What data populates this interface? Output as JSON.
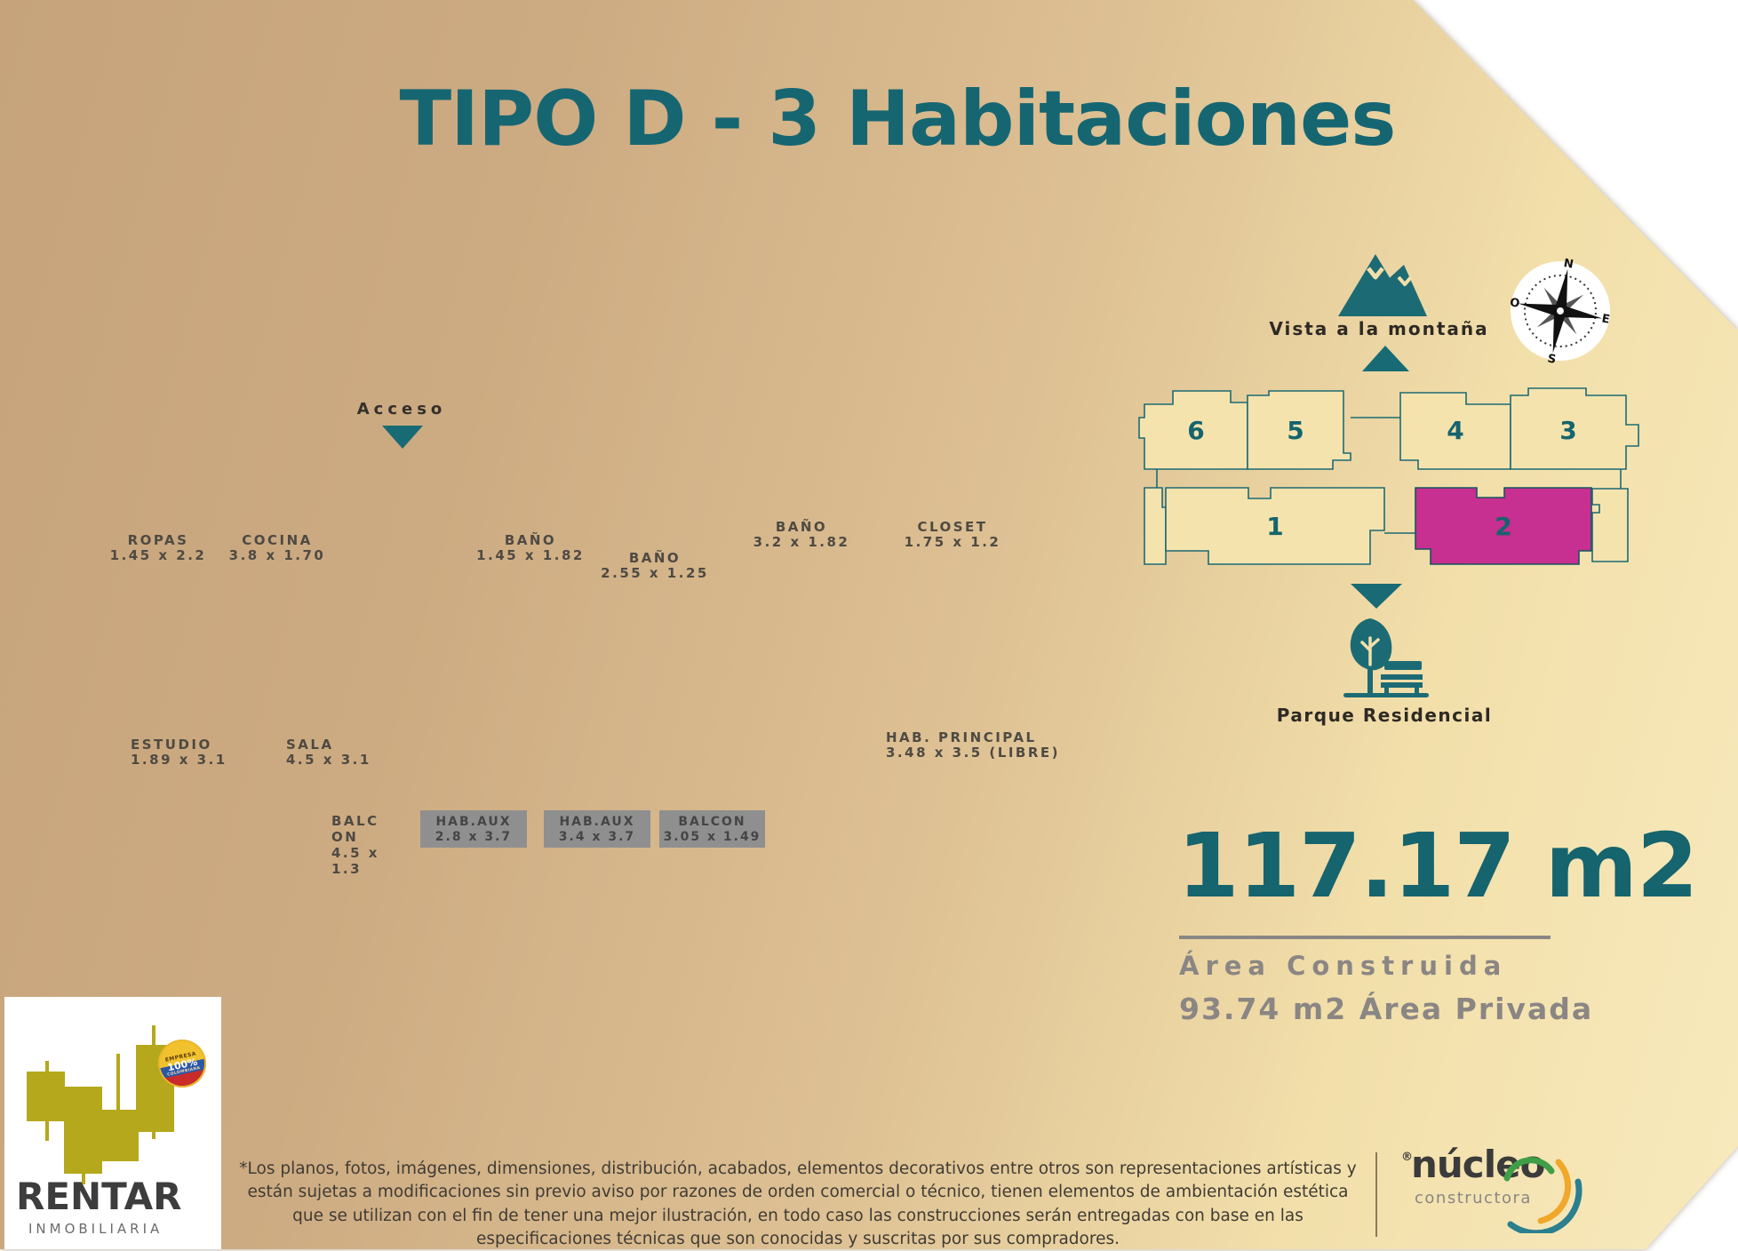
{
  "title": "TIPO D - 3 Habitaciones",
  "access": {
    "label": "Acceso"
  },
  "rooms": [
    {
      "name": "ROPAS",
      "dims": "1.45 x 2.2"
    },
    {
      "name": "COCINA",
      "dims": "3.8 x 1.70"
    },
    {
      "name": "BAÑO",
      "dims": "1.45 x 1.82"
    },
    {
      "name": "BAÑO",
      "dims": "2.55 x 1.25"
    },
    {
      "name": "BAÑO",
      "dims": "3.2 x 1.82"
    },
    {
      "name": "CLOSET",
      "dims": "1.75 x 1.2"
    },
    {
      "name": "ESTUDIO",
      "dims": "1.89 x 3.1"
    },
    {
      "name": "SALA",
      "dims": "4.5 x 3.1"
    },
    {
      "name": "HAB. PRINCIPAL",
      "dims": "3.48 x 3.5 (LIBRE)"
    },
    {
      "name": "BALCON",
      "dims": "4.5 x 1.3"
    }
  ],
  "aux_boxes": [
    {
      "name": "HAB.AUX",
      "dims": "2.8 x 3.7"
    },
    {
      "name": "HAB.AUX",
      "dims": "3.4 x 3.7"
    },
    {
      "name": "BALCON",
      "dims": "3.05 x 1.49"
    }
  ],
  "diagram": {
    "units": [
      "6",
      "5",
      "4",
      "3",
      "1",
      "2"
    ],
    "highlighted_unit": "2",
    "vista_label": "Vista a la montaña",
    "park_label": "Parque Residencial",
    "compass": {
      "n": "N",
      "e": "E",
      "s": "S",
      "o": "O"
    }
  },
  "area": {
    "total": "117.17 m2",
    "built_label": "Área Construida",
    "private_label": "93.74 m2 Área Privada"
  },
  "disclaimer": "*Los planos, fotos, imágenes, dimensiones, distribución, acabados, elementos decorativos entre otros son representaciones artísticas y están sujetas a modificaciones sin previo aviso por razones de orden comercial o técnico, tienen elementos de ambientación estética que se utilizan con el fin de tener una mejor ilustración, en todo caso las construcciones serán entregadas con base en las especificaciones técnicas que son conocidas y suscritas por sus compradores.",
  "logos": {
    "rentar": {
      "name": "RENTAR",
      "sub": "INMOBILIARIA",
      "badge": {
        "top": "EMPRESA",
        "middle": "100%",
        "bottom": "COLOMBIANA"
      }
    },
    "nucleo": {
      "reg": "®",
      "name": "núcleo",
      "sub": "constructora"
    }
  },
  "colors": {
    "teal": "#176a74",
    "magenta": "#c72f90",
    "tan_dark": "#c6a37b",
    "cream_light": "#f8eabd",
    "gray": "#8a8684",
    "olive": "#b5a81c"
  }
}
